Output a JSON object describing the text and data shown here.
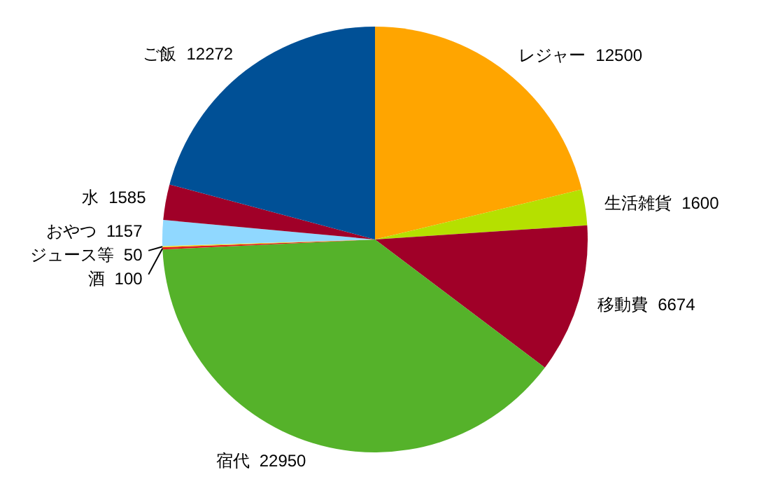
{
  "chart_data": {
    "type": "pie",
    "categories": [
      "レジャー",
      "生活雑貨",
      "移動費",
      "宿代",
      "酒",
      "ジュース等",
      "おやつ",
      "水",
      "ご飯"
    ],
    "values": [
      12500,
      1600,
      6674,
      22950,
      100,
      50,
      1157,
      1585,
      12272
    ],
    "colors": [
      "#ffa500",
      "#b5e000",
      "#a00028",
      "#55b22a",
      "#e02020",
      "#f0e020",
      "#90d8ff",
      "#a00028",
      "#005096"
    ],
    "data_labels": true
  }
}
